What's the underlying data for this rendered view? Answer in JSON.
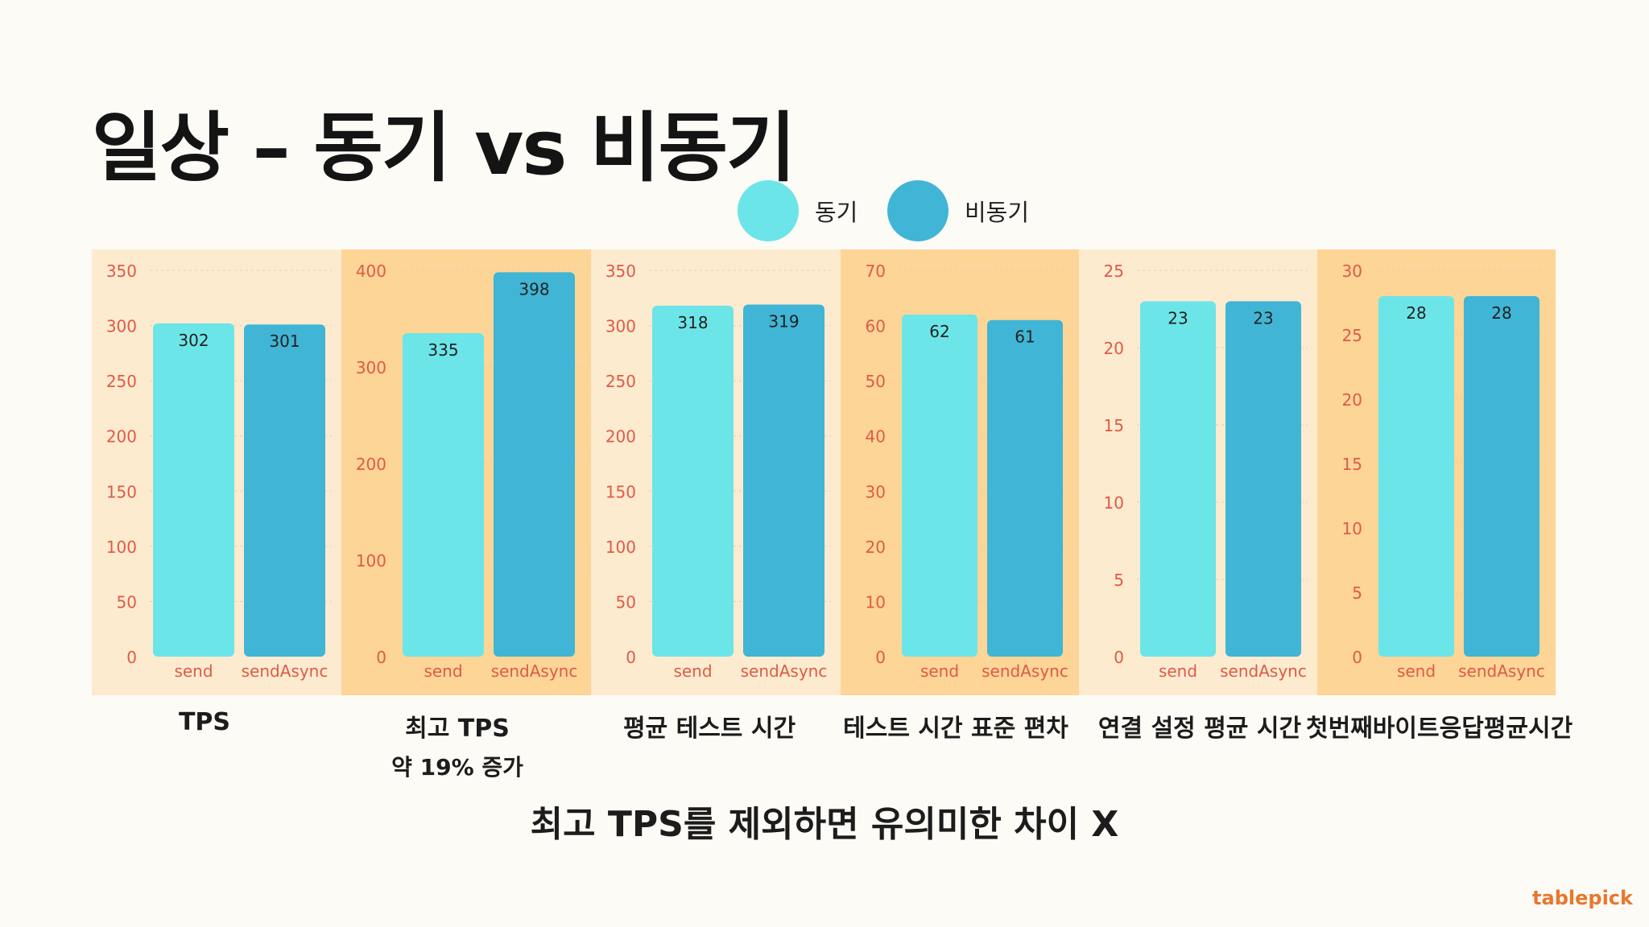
{
  "title": "일상 – 동기 vs 비동기",
  "legend": {
    "sync": {
      "label": "동기",
      "color": "#6ce5e8"
    },
    "async": {
      "label": "비동기",
      "color": "#40b5d6"
    }
  },
  "colors": {
    "tick": "#e05a46",
    "label": "#e05a46",
    "value": "#222222",
    "panel_light": "#fdebd0",
    "panel_dark": "#fcd597"
  },
  "chart_data": [
    {
      "type": "bar",
      "title": "TPS",
      "categories": [
        "send",
        "sendAsync"
      ],
      "values": [
        302,
        301
      ],
      "yticks": [
        0,
        50,
        100,
        150,
        200,
        250,
        300,
        350
      ],
      "ylim": [
        0,
        350
      ],
      "panel": "light"
    },
    {
      "type": "bar",
      "title": "최고 TPS",
      "subtitle": "약 19% 증가",
      "categories": [
        "send",
        "sendAsync"
      ],
      "values": [
        335,
        398
      ],
      "yticks": [
        0,
        100,
        200,
        300,
        400
      ],
      "ylim": [
        0,
        400
      ],
      "panel": "dark"
    },
    {
      "type": "bar",
      "title": "평균 테스트 시간",
      "categories": [
        "send",
        "sendAsync"
      ],
      "values": [
        318,
        319
      ],
      "yticks": [
        0,
        50,
        100,
        150,
        200,
        250,
        300,
        350
      ],
      "ylim": [
        0,
        350
      ],
      "panel": "light"
    },
    {
      "type": "bar",
      "title": "테스트 시간 표준 편차",
      "categories": [
        "send",
        "sendAsync"
      ],
      "values": [
        62,
        61
      ],
      "yticks": [
        0,
        10,
        20,
        30,
        40,
        50,
        60,
        70
      ],
      "ylim": [
        0,
        70
      ],
      "panel": "dark"
    },
    {
      "type": "bar",
      "title": "연결 설정 평균 시간",
      "categories": [
        "send",
        "sendAsync"
      ],
      "values": [
        23,
        23
      ],
      "yticks": [
        0,
        5,
        10,
        15,
        20,
        25
      ],
      "ylim": [
        0,
        25
      ],
      "panel": "light"
    },
    {
      "type": "bar",
      "title": "첫번째바이트응답평균시간",
      "categories": [
        "send",
        "sendAsync"
      ],
      "values": [
        28,
        28
      ],
      "yticks": [
        0,
        5,
        10,
        15,
        20,
        25,
        30
      ],
      "ylim": [
        0,
        30
      ],
      "panel": "dark"
    }
  ],
  "footer": "최고 TPS를 제외하면 유의미한 차이 X",
  "logo": "tablepick"
}
